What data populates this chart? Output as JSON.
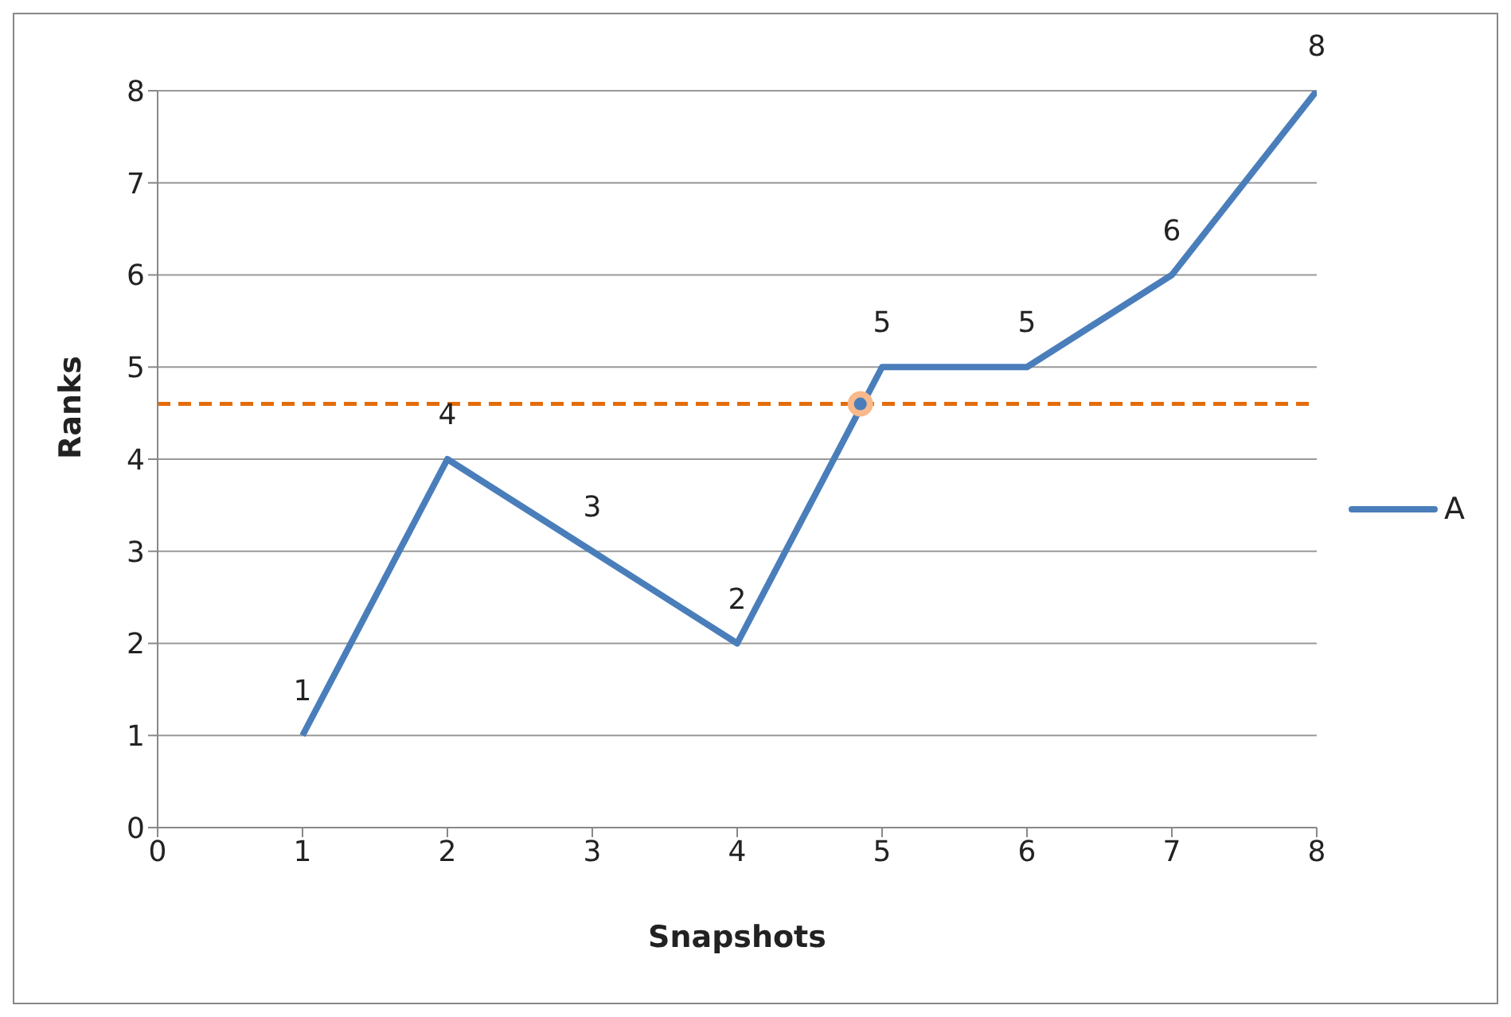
{
  "chart_data": {
    "type": "line",
    "xlabel": "Snapshots",
    "ylabel": "Ranks",
    "x": [
      1,
      2,
      3,
      4,
      5,
      6,
      7,
      8
    ],
    "series": [
      {
        "name": "A",
        "color": "#4a7ebb",
        "values": [
          1,
          4,
          3,
          2,
          5,
          5,
          6,
          8
        ],
        "value_labels": [
          "1",
          "4",
          "3",
          "2",
          "5",
          "5",
          "6",
          "8"
        ]
      },
      {
        "type": "scatter",
        "color": "#f9b98a",
        "marker": "circle",
        "x": [
          4.85
        ],
        "values": [
          4.6
        ]
      }
    ],
    "xlim": [
      0,
      8
    ],
    "xticks": [
      0,
      1,
      2,
      3,
      4,
      5,
      6,
      7,
      8
    ],
    "ylim": [
      0,
      8
    ],
    "yticks": [
      0,
      1,
      2,
      3,
      4,
      5,
      6,
      7,
      8
    ],
    "grid": "y",
    "legend": "right",
    "marker": "none",
    "line_style": "solid",
    "ref_lines": [
      {
        "axis": "y",
        "value": 4.6,
        "color": "#e46c0a",
        "line_style": "dashed"
      }
    ]
  }
}
